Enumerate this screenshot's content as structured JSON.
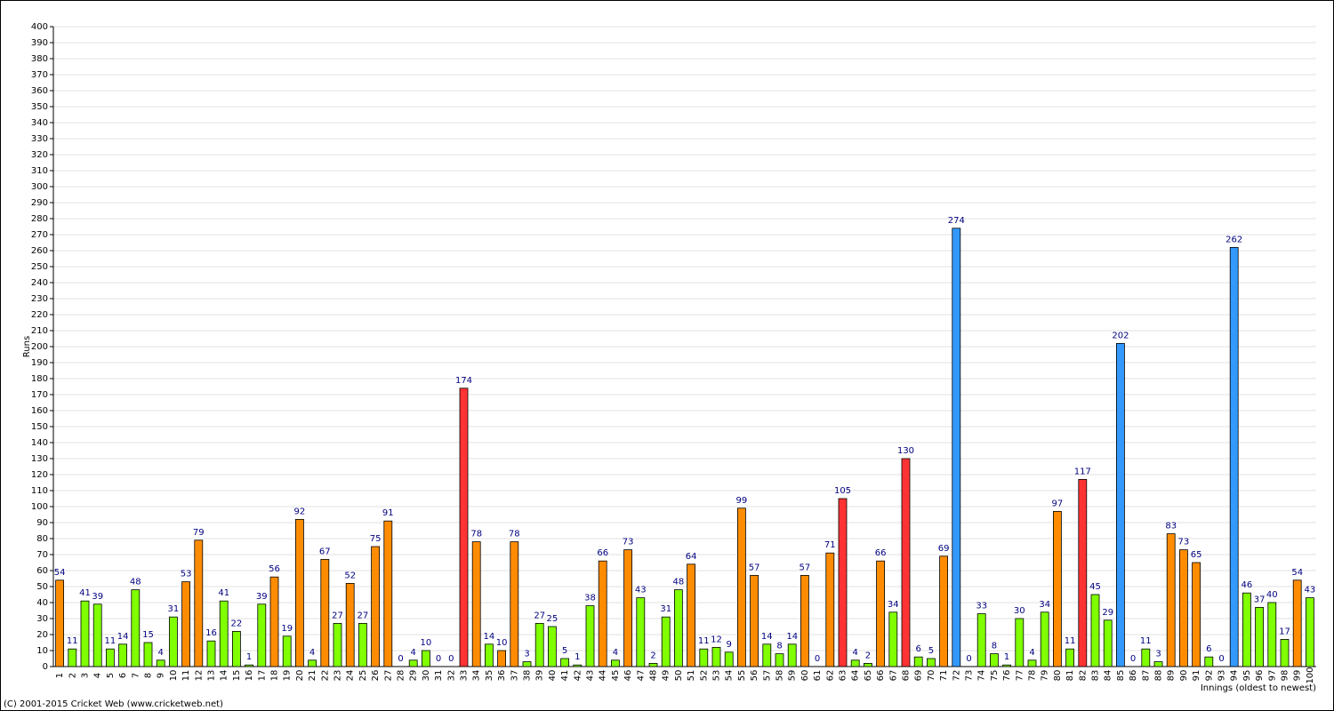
{
  "chart_data": {
    "type": "bar",
    "y_label": "Runs",
    "x_label": "Innings (oldest to newest)",
    "footer": "(C) 2001-2015 Cricket Web (www.cricketweb.net)",
    "categories": [
      "1",
      "2",
      "3",
      "4",
      "5",
      "6",
      "7",
      "8",
      "9",
      "10",
      "11",
      "12",
      "13",
      "14",
      "15",
      "16",
      "17",
      "18",
      "19",
      "20",
      "21",
      "22",
      "23",
      "24",
      "25",
      "26",
      "27",
      "28",
      "29",
      "30",
      "31",
      "32",
      "33",
      "34",
      "35",
      "36",
      "37",
      "38",
      "39",
      "40",
      "41",
      "42",
      "43",
      "44",
      "45",
      "46",
      "47",
      "48",
      "49",
      "50",
      "51",
      "52",
      "53",
      "54",
      "55",
      "56",
      "57",
      "58",
      "59",
      "60",
      "61",
      "62",
      "63",
      "64",
      "65",
      "66",
      "67",
      "68",
      "69",
      "70",
      "71",
      "72",
      "73",
      "74",
      "75",
      "76",
      "77",
      "78",
      "79",
      "80",
      "81",
      "82",
      "83",
      "84",
      "85",
      "86",
      "87",
      "88",
      "89",
      "90",
      "91",
      "92",
      "93",
      "94",
      "95",
      "96",
      "97",
      "98",
      "99",
      "100"
    ],
    "values": [
      54,
      11,
      41,
      39,
      11,
      14,
      48,
      15,
      4,
      31,
      53,
      79,
      16,
      41,
      22,
      1,
      39,
      56,
      19,
      92,
      4,
      67,
      27,
      52,
      27,
      75,
      91,
      0,
      4,
      10,
      0,
      0,
      174,
      78,
      14,
      10,
      78,
      3,
      27,
      25,
      5,
      1,
      38,
      66,
      4,
      73,
      43,
      2,
      31,
      48,
      64,
      11,
      12,
      9,
      99,
      57,
      14,
      8,
      14,
      57,
      0,
      71,
      105,
      4,
      2,
      66,
      34,
      130,
      6,
      5,
      69,
      274,
      0,
      33,
      8,
      1,
      30,
      4,
      34,
      97,
      11,
      117,
      45,
      29,
      202,
      0,
      11,
      3,
      83,
      73,
      65,
      6,
      0,
      262,
      46,
      37,
      40,
      17,
      54,
      43
    ],
    "colors": [
      "#ff8c00",
      "#80ff00",
      "#80ff00",
      "#80ff00",
      "#80ff00",
      "#80ff00",
      "#80ff00",
      "#80ff00",
      "#80ff00",
      "#80ff00",
      "#ff8c00",
      "#ff8c00",
      "#80ff00",
      "#80ff00",
      "#80ff00",
      "#80ff00",
      "#80ff00",
      "#ff8c00",
      "#80ff00",
      "#ff8c00",
      "#80ff00",
      "#ff8c00",
      "#80ff00",
      "#ff8c00",
      "#80ff00",
      "#ff8c00",
      "#ff8c00",
      "#80ff00",
      "#80ff00",
      "#80ff00",
      "#80ff00",
      "#80ff00",
      "#ff3333",
      "#ff8c00",
      "#80ff00",
      "#ff8c00",
      "#ff8c00",
      "#80ff00",
      "#80ff00",
      "#80ff00",
      "#80ff00",
      "#80ff00",
      "#80ff00",
      "#ff8c00",
      "#80ff00",
      "#ff8c00",
      "#80ff00",
      "#80ff00",
      "#80ff00",
      "#80ff00",
      "#ff8c00",
      "#80ff00",
      "#80ff00",
      "#80ff00",
      "#ff8c00",
      "#ff8c00",
      "#80ff00",
      "#80ff00",
      "#80ff00",
      "#ff8c00",
      "#80ff00",
      "#ff8c00",
      "#ff3333",
      "#80ff00",
      "#80ff00",
      "#ff8c00",
      "#80ff00",
      "#ff3333",
      "#80ff00",
      "#80ff00",
      "#ff8c00",
      "#3399ff",
      "#80ff00",
      "#80ff00",
      "#80ff00",
      "#80ff00",
      "#80ff00",
      "#80ff00",
      "#80ff00",
      "#ff8c00",
      "#80ff00",
      "#ff3333",
      "#80ff00",
      "#80ff00",
      "#3399ff",
      "#80ff00",
      "#80ff00",
      "#80ff00",
      "#ff8c00",
      "#ff8c00",
      "#ff8c00",
      "#80ff00",
      "#80ff00",
      "#3399ff",
      "#80ff00",
      "#80ff00",
      "#80ff00",
      "#80ff00",
      "#ff8c00",
      "#80ff00"
    ],
    "label_color": "#000080",
    "ylim": [
      0,
      400
    ],
    "yticks": [
      0,
      10,
      20,
      30,
      40,
      50,
      60,
      70,
      80,
      90,
      100,
      110,
      120,
      130,
      140,
      150,
      160,
      170,
      180,
      190,
      200,
      210,
      220,
      230,
      240,
      250,
      260,
      270,
      280,
      290,
      300,
      310,
      320,
      330,
      340,
      350,
      360,
      370,
      380,
      390,
      400
    ],
    "grid": true
  }
}
